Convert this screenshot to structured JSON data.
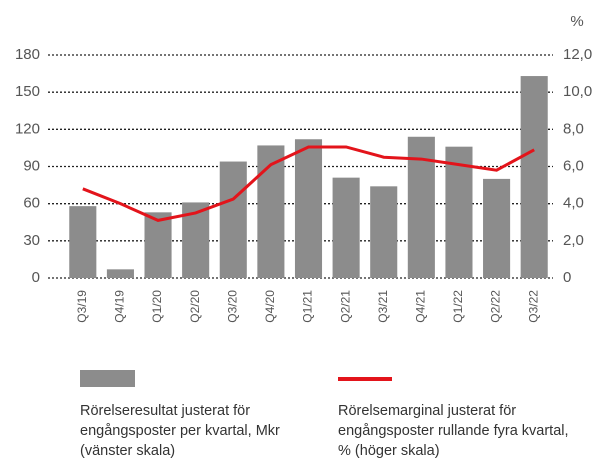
{
  "chart_data": {
    "type": "bar",
    "y2label": "%",
    "categories": [
      "Q3/19",
      "Q4/19",
      "Q1/20",
      "Q2/20",
      "Q3/20",
      "Q4/20",
      "Q1/21",
      "Q2/21",
      "Q3/21",
      "Q4/21",
      "Q1/22",
      "Q2/22",
      "Q3/22"
    ],
    "series": [
      {
        "name": "Rörelseresultat justerat för engångsposter per kvartal, Mkr (vänster skala)",
        "type": "bar",
        "color": "#8c8c8c",
        "values": [
          58,
          7,
          53,
          61,
          94,
          107,
          112,
          81,
          74,
          114,
          106,
          80,
          163
        ]
      },
      {
        "name": "Rörelsemarginal justerat för engångsposter rullande fyra kvartal, % (höger skala)",
        "type": "line",
        "axis": "y2",
        "color": "#e3141b",
        "values": [
          4.8,
          4.0,
          3.1,
          3.5,
          4.25,
          6.1,
          7.05,
          7.05,
          6.5,
          6.4,
          6.1,
          5.8,
          6.9
        ]
      }
    ],
    "ylim": [
      0,
      180
    ],
    "yticks": [
      0,
      30,
      60,
      90,
      120,
      150,
      180
    ],
    "y2lim": [
      0,
      12
    ],
    "y2ticks": [
      0,
      {
        "value": 2,
        "label": "2,0"
      },
      {
        "value": 4,
        "label": "4,0"
      },
      {
        "value": 6,
        "label": "6,0"
      },
      {
        "value": 8,
        "label": "8,0"
      },
      {
        "value": 10,
        "label": "10,0"
      },
      {
        "value": 12,
        "label": "12,0"
      }
    ],
    "grid": true
  }
}
